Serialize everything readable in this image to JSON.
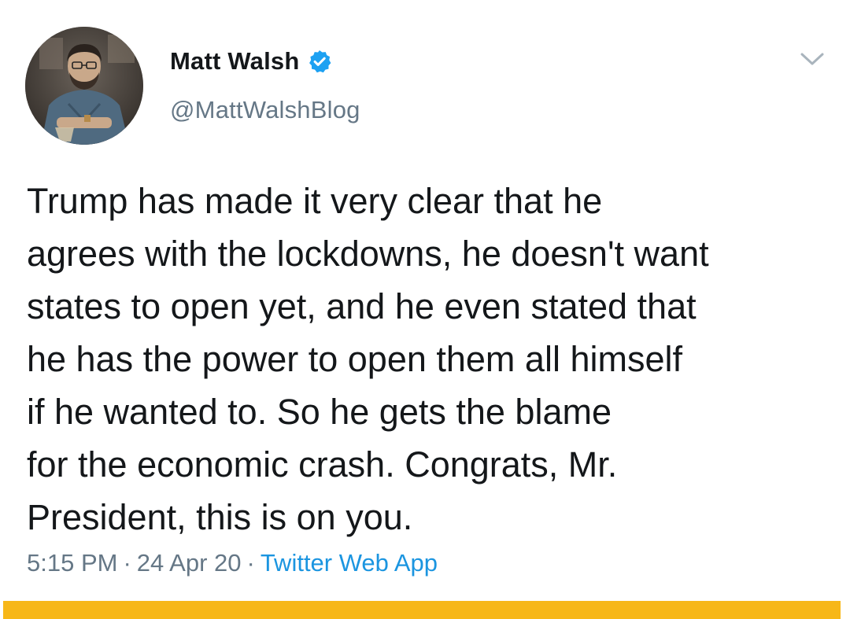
{
  "user": {
    "display_name": "Matt Walsh",
    "handle": "@MattWalshBlog",
    "verified": true,
    "verified_icon": "verified-badge-icon",
    "avatar_icon": "profile-photo"
  },
  "tweet": {
    "lines": [
      "Trump has made it very clear that he",
      "agrees with the lockdowns, he doesn't want",
      "states to open yet, and he even stated that",
      "he has the power to open them all himself",
      "if he wanted to. So he gets the blame",
      "for the economic crash. Congrats, Mr.",
      "President, this is on you."
    ]
  },
  "meta": {
    "time": "5:15 PM",
    "separator": "·",
    "date": "24 Apr 20",
    "source": "Twitter Web App"
  },
  "menu": {
    "icon": "chevron-down-icon"
  },
  "colors": {
    "text_primary": "#14171a",
    "text_secondary": "#657786",
    "link": "#1b95e0",
    "verified_blue": "#1da1f2",
    "bottom_bar": "#f7b718"
  }
}
